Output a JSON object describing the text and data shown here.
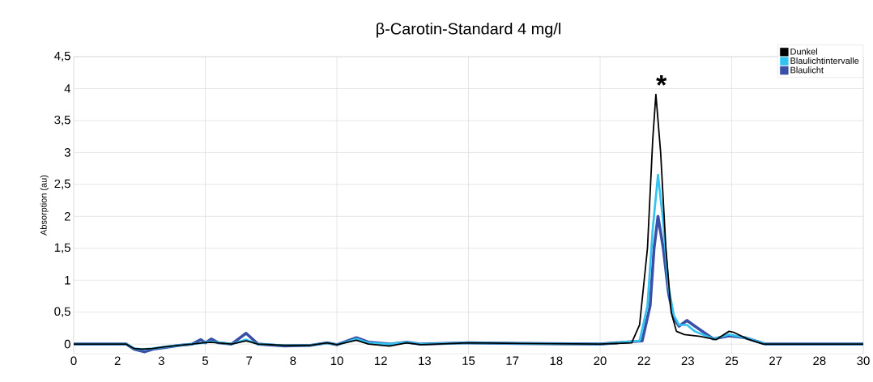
{
  "chart_data": {
    "type": "line",
    "title": "β-Carotin-Standard 4 mg/l",
    "ylabel": "Absorption (au)",
    "xlim": [
      0,
      30
    ],
    "ylim": [
      -0.15,
      4.5
    ],
    "xticks": [
      0,
      {
        "value": 1.667,
        "label": "2"
      },
      {
        "value": 3.333,
        "label": "3"
      },
      5,
      {
        "value": 6.667,
        "label": "7"
      },
      {
        "value": 8.333,
        "label": "8"
      },
      10,
      {
        "value": 11.667,
        "label": "12"
      },
      {
        "value": 13.333,
        "label": "13"
      },
      15,
      {
        "value": 16.667,
        "label": "17"
      },
      {
        "value": 18.333,
        "label": "18"
      },
      20,
      {
        "value": 21.667,
        "label": "22"
      },
      {
        "value": 23.333,
        "label": "23"
      },
      25,
      {
        "value": 26.667,
        "label": "27"
      },
      {
        "value": 28.333,
        "label": "28"
      },
      30
    ],
    "yticks": [
      0,
      {
        "value": 0.5,
        "label": "0,5"
      },
      1,
      {
        "value": 1.5,
        "label": "1,5"
      },
      2,
      {
        "value": 2.5,
        "label": "2,5"
      },
      3,
      {
        "value": 3.5,
        "label": "3,5"
      },
      4,
      {
        "value": 4.5,
        "label": "4,5"
      }
    ],
    "grid": true,
    "legend": "top right",
    "marker": "none",
    "line_style": "solid",
    "annotations": [
      {
        "text": "*",
        "x": 22.12,
        "y": 3.91
      }
    ],
    "series": [
      {
        "name": "Dunkel",
        "color": "#000000",
        "x": [
          0,
          1,
          2,
          2.3,
          2.6,
          3.0,
          3.5,
          4.0,
          4.5,
          4.9,
          5.2,
          6.0,
          6.55,
          7.0,
          8.0,
          9.0,
          9.63,
          10.0,
          10.74,
          11.2,
          12.0,
          12.65,
          13.2,
          15,
          17,
          20,
          21.2,
          21.5,
          21.8,
          22.0,
          22.12,
          22.3,
          22.5,
          22.7,
          22.9,
          23.2,
          23.8,
          24.4,
          24.9,
          25.1,
          25.6,
          26.2,
          27,
          30
        ],
        "values": [
          0,
          0,
          0,
          -0.07,
          -0.08,
          -0.07,
          -0.04,
          -0.02,
          0,
          0.02,
          0.03,
          0,
          0.05,
          0,
          -0.02,
          -0.02,
          0.02,
          -0.01,
          0.06,
          0,
          -0.03,
          0.02,
          -0.01,
          0.02,
          0.01,
          0,
          0.02,
          0.3,
          1.5,
          3.2,
          3.91,
          3.0,
          1.5,
          0.5,
          0.2,
          0.15,
          0.12,
          0.07,
          0.2,
          0.18,
          0.08,
          0,
          0,
          0
        ]
      },
      {
        "name": "Blaulichtintervalle",
        "color": "#33c3f0",
        "x": [
          0,
          1,
          2,
          2.3,
          2.6,
          3.0,
          3.5,
          4.0,
          4.5,
          4.9,
          5.2,
          6.0,
          6.55,
          7.0,
          8.0,
          9.0,
          9.63,
          10.0,
          10.74,
          11.2,
          12.0,
          12.65,
          13.2,
          15,
          17,
          20,
          21.5,
          21.8,
          22.0,
          22.2,
          22.4,
          22.6,
          22.8,
          23.0,
          23.3,
          23.6,
          24.3,
          24.9,
          25.5,
          26.3,
          27,
          30
        ],
        "values": [
          0,
          0,
          0,
          -0.07,
          -0.08,
          -0.07,
          -0.04,
          -0.02,
          0,
          0.02,
          0.04,
          0,
          0.07,
          0,
          -0.02,
          -0.02,
          0.02,
          -0.01,
          0.08,
          0.02,
          0,
          0.03,
          0,
          0.02,
          0.01,
          0,
          0.05,
          0.6,
          1.8,
          2.65,
          1.9,
          0.9,
          0.45,
          0.3,
          0.3,
          0.2,
          0.08,
          0.15,
          0.1,
          0,
          0,
          0
        ]
      },
      {
        "name": "Blaulicht",
        "color": "#3a4fa6",
        "x": [
          0,
          1,
          2,
          2.3,
          2.5,
          2.7,
          3.0,
          3.5,
          4.0,
          4.5,
          4.83,
          5.0,
          5.23,
          5.5,
          6.0,
          6.55,
          7.0,
          8.0,
          9.0,
          9.63,
          10.0,
          10.74,
          11.2,
          12.0,
          12.65,
          13.2,
          15,
          17,
          20,
          21.6,
          21.9,
          22.05,
          22.2,
          22.4,
          22.6,
          22.8,
          23.0,
          23.3,
          23.6,
          24.3,
          24.9,
          25.5,
          26.3,
          27,
          30
        ],
        "values": [
          0,
          0,
          0,
          -0.08,
          -0.1,
          -0.12,
          -0.08,
          -0.05,
          -0.02,
          0,
          0.07,
          0.02,
          0.08,
          0.02,
          0,
          0.17,
          0,
          -0.03,
          -0.02,
          0.02,
          -0.01,
          0.1,
          0.03,
          0,
          0.03,
          0,
          0.02,
          0.01,
          0,
          0.05,
          0.6,
          1.5,
          2.0,
          1.5,
          0.8,
          0.4,
          0.28,
          0.37,
          0.28,
          0.08,
          0.13,
          0.1,
          0,
          0,
          0
        ]
      }
    ]
  }
}
